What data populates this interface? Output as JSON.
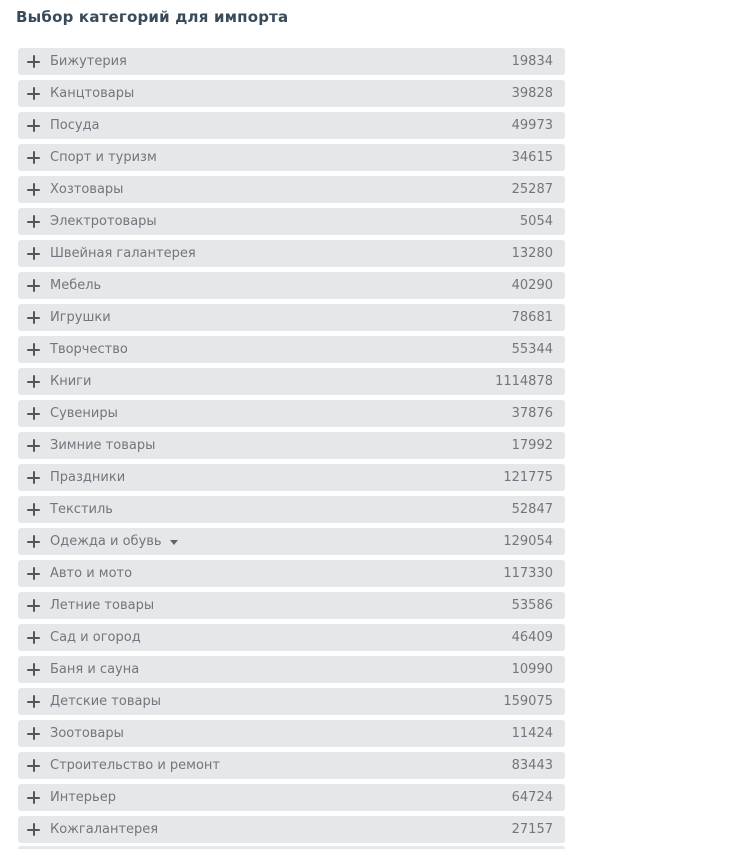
{
  "page": {
    "title": "Выбор категорий для импорта"
  },
  "colors": {
    "title": "#394a59",
    "row_background": "#e6e7e9",
    "row_text": "#74757d",
    "icon": "#54555c",
    "page_background": "#ffffff"
  },
  "icons": {
    "category_prefix": "plus-icon",
    "expandable_marker": "caret-down-icon"
  },
  "categories": [
    {
      "label": "Бижутерия",
      "count": "19834"
    },
    {
      "label": "Канцтовары",
      "count": "39828"
    },
    {
      "label": "Посуда",
      "count": "49973"
    },
    {
      "label": "Спорт и туризм",
      "count": "34615"
    },
    {
      "label": "Хозтовары",
      "count": "25287"
    },
    {
      "label": "Электротовары",
      "count": "5054"
    },
    {
      "label": "Швейная галантерея",
      "count": "13280"
    },
    {
      "label": "Мебель",
      "count": "40290"
    },
    {
      "label": "Игрушки",
      "count": "78681"
    },
    {
      "label": "Творчество",
      "count": "55344"
    },
    {
      "label": "Книги",
      "count": "1114878"
    },
    {
      "label": "Сувениры",
      "count": "37876"
    },
    {
      "label": "Зимние товары",
      "count": "17992"
    },
    {
      "label": "Праздники",
      "count": "121775"
    },
    {
      "label": "Текстиль",
      "count": "52847"
    },
    {
      "label": "Одежда и обувь",
      "count": "129054",
      "has_caret": true
    },
    {
      "label": "Авто и мото",
      "count": "117330"
    },
    {
      "label": "Летние товары",
      "count": "53586"
    },
    {
      "label": "Сад и огород",
      "count": "46409"
    },
    {
      "label": "Баня и сауна",
      "count": "10990"
    },
    {
      "label": "Детские товары",
      "count": "159075"
    },
    {
      "label": "Зоотовары",
      "count": "11424"
    },
    {
      "label": "Строительство и ремонт",
      "count": "83443"
    },
    {
      "label": "Интерьер",
      "count": "64724"
    },
    {
      "label": "Кожгалантерея",
      "count": "27157"
    }
  ]
}
